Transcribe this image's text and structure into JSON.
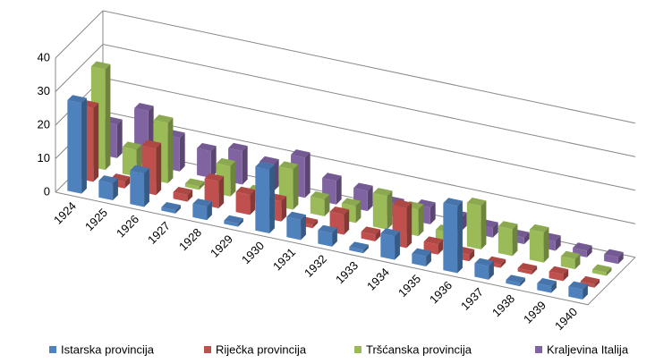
{
  "chart_data": {
    "type": "bar3d",
    "categories": [
      "1924",
      "1925",
      "1926",
      "1927",
      "1928",
      "1929",
      "1930",
      "1931",
      "1932",
      "1933",
      "1934",
      "1935",
      "1936",
      "1937",
      "1938",
      "1939",
      "1940"
    ],
    "series": [
      {
        "name": "Istarska provincija",
        "color": "#4f81bd",
        "values": [
          27,
          5,
          10,
          1,
          4,
          1,
          19,
          6,
          4,
          1,
          7,
          3,
          20,
          4,
          1,
          2,
          3
        ]
      },
      {
        "name": "Riječka provincija",
        "color": "#c0504d",
        "values": [
          22,
          2,
          14,
          2,
          8,
          6,
          6,
          1,
          6,
          2,
          12,
          3,
          2,
          1,
          1,
          2,
          1
        ]
      },
      {
        "name": "Tršćanska provincija",
        "color": "#9bbb59",
        "values": [
          30,
          8,
          18,
          1,
          9,
          3,
          12,
          5,
          5,
          10,
          8,
          3,
          13,
          8,
          9,
          3,
          1
        ]
      },
      {
        "name": "Kraljevina Italija",
        "color": "#8064a2",
        "values": [
          10,
          16,
          10,
          8,
          10,
          8,
          12,
          7,
          6,
          4,
          5,
          4,
          3,
          2,
          3,
          2,
          2
        ]
      }
    ],
    "ylim": [
      0,
      40
    ],
    "yticks": [
      0,
      10,
      20,
      30,
      40
    ],
    "grid": true,
    "legend": "bottom"
  }
}
